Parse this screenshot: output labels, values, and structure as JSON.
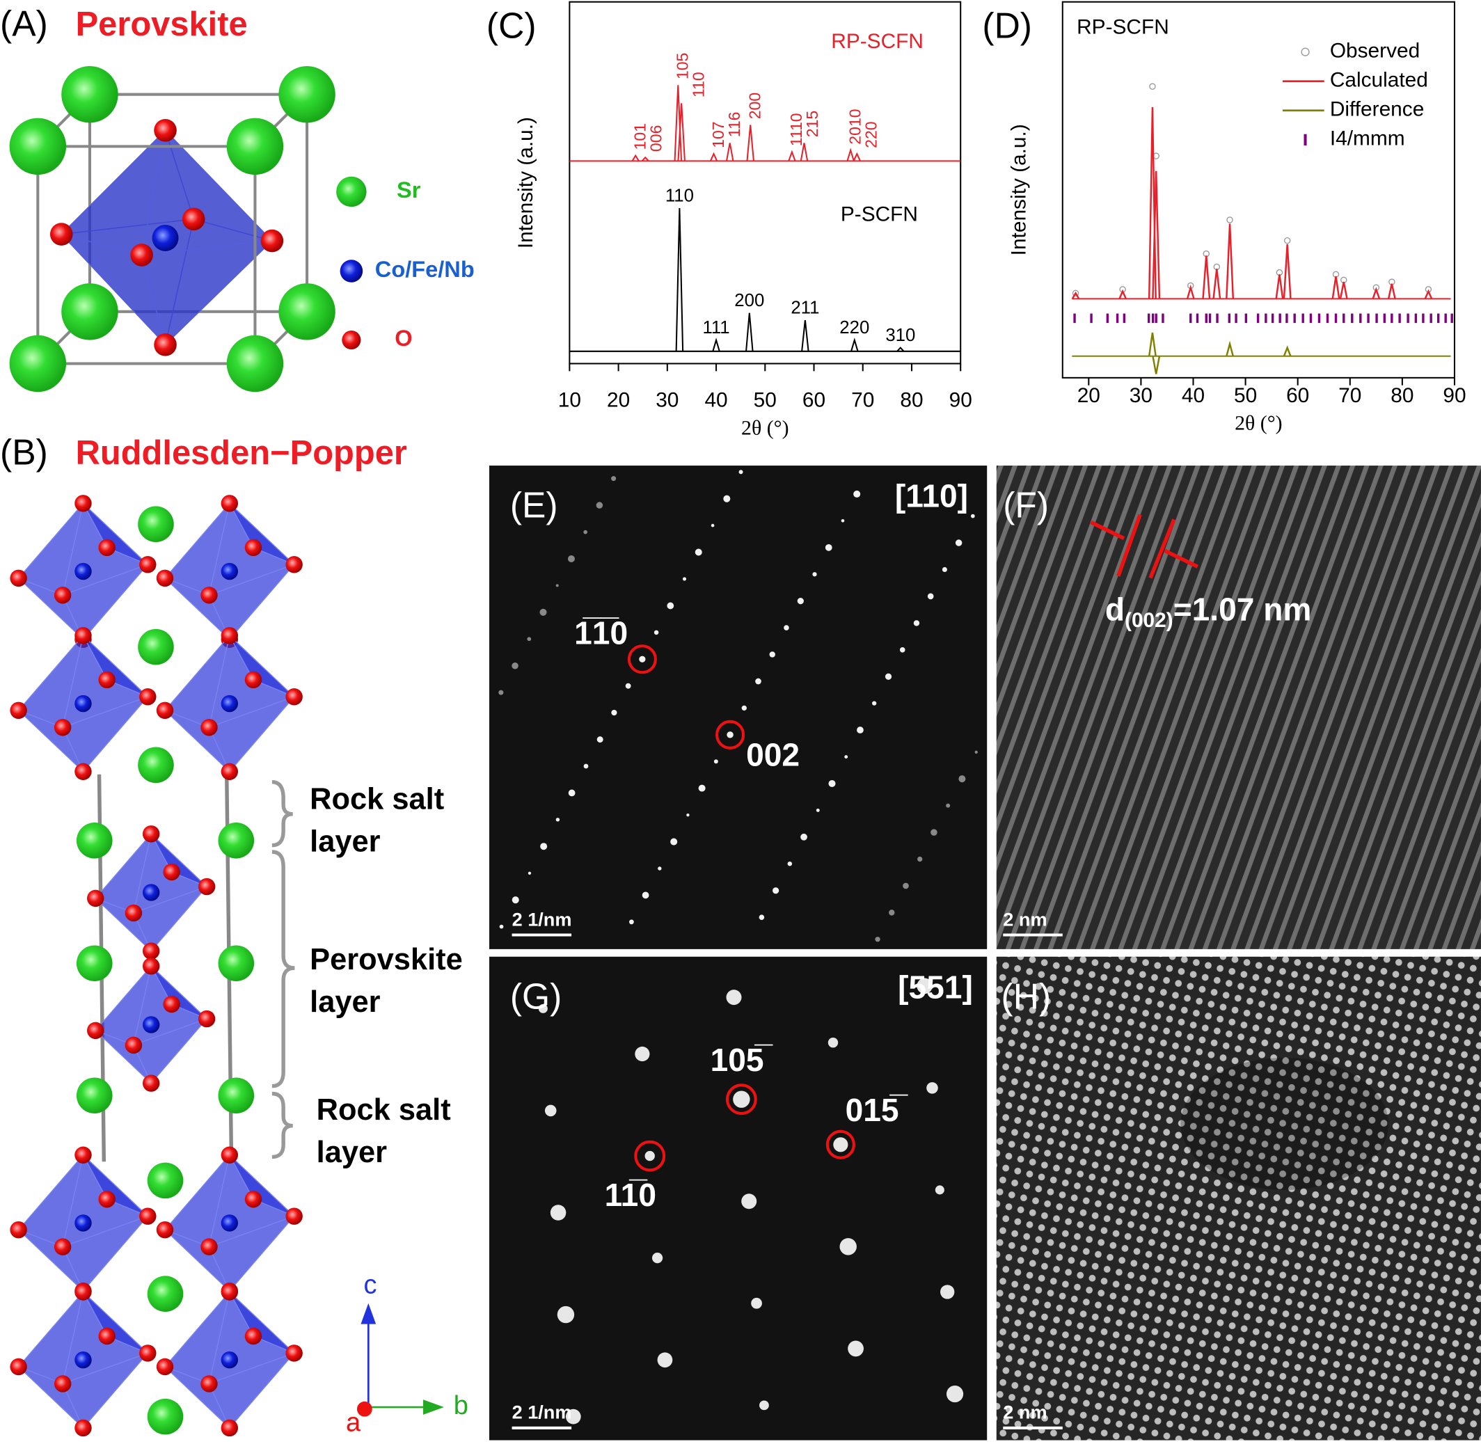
{
  "panels": {
    "A": {
      "label": "(A)",
      "title": "Perovskite",
      "legend": [
        "Sr",
        "Co/Fe/Nb",
        "O"
      ]
    },
    "B": {
      "label": "(B)",
      "title": "Ruddlesden−Popper",
      "layers": [
        [
          "Rock salt",
          "layer"
        ],
        [
          "Perovskite",
          "layer"
        ],
        [
          "Rock salt",
          "layer"
        ]
      ],
      "axes": [
        "c",
        "a",
        "b"
      ]
    },
    "E": {
      "label": "(E)",
      "zone": "[110]",
      "spots": [
        "1̅1̅0",
        "002"
      ],
      "scale_bar": "2 1/nm"
    },
    "F": {
      "label": "(F)",
      "d_symbol": "d",
      "d_index": "(002)",
      "d_value": "=1.07 nm",
      "scale_bar": "2 nm"
    },
    "G": {
      "label": "(G)",
      "zone": "[551]",
      "spots": [
        "105̅",
        "015̅",
        "11̅0"
      ],
      "scale_bar": "2 1/nm"
    },
    "H": {
      "label": "(H)",
      "scale_bar": "2 nm"
    }
  },
  "chart_data": [
    {
      "type": "xrd",
      "label": "(C)",
      "xlabel": "2θ (°)",
      "ylabel": "Intensity (a.u.)",
      "xlim": [
        10,
        90
      ],
      "xticks": [
        10,
        20,
        30,
        40,
        50,
        60,
        70,
        80,
        90
      ],
      "ylim": [
        0,
        100
      ],
      "series": [
        {
          "name": "RP-SCFN",
          "color": "#e8202a",
          "baseline": 56,
          "x": [
            23.5,
            25.5,
            32.2,
            32.9,
            39.5,
            42.8,
            47.0,
            55.5,
            58.0,
            67.5,
            68.8
          ],
          "values": [
            57.5,
            57,
            77,
            72,
            58,
            61,
            66,
            58.5,
            61,
            59,
            58
          ],
          "labels": [
            "101",
            "006",
            "105",
            "110",
            "107",
            "116",
            "200",
            "1110",
            "215",
            "2010",
            "220"
          ]
        },
        {
          "name": "P-SCFN",
          "color": "#000000",
          "baseline": 3.4,
          "x": [
            32.5,
            40.0,
            46.8,
            58.2,
            68.3,
            77.7
          ],
          "values": [
            43,
            6.5,
            14,
            12,
            6.5,
            4.4
          ],
          "labels": [
            "110",
            "111",
            "200",
            "211",
            "220",
            "310"
          ]
        }
      ]
    },
    {
      "type": "rietveld",
      "label": "(D)",
      "title": "RP-SCFN",
      "xlabel": "2θ (°)",
      "ylabel": "Intensity (a.u.)",
      "xlim": [
        15,
        90
      ],
      "xticks": [
        20,
        30,
        40,
        50,
        60,
        70,
        80,
        90
      ],
      "ylim": [
        0,
        100
      ],
      "series": [
        {
          "name": "Observed",
          "color": "#999999",
          "x": [
            17.5,
            26.5,
            32.2,
            32.9,
            39.5,
            42.5,
            44.5,
            47.0,
            56.5,
            58.0,
            67.3,
            68.8,
            75.0,
            78.0,
            85.0
          ],
          "values": [
            22.5,
            23.5,
            77.5,
            59,
            24.5,
            33,
            29.5,
            42,
            28,
            36.5,
            27.5,
            26,
            24,
            25.5,
            23.5
          ]
        },
        {
          "name": "Calculated",
          "color": "#e8202a",
          "baseline": 21,
          "x": [
            17.5,
            26.5,
            32.2,
            32.9,
            39.5,
            42.5,
            44.5,
            47.0,
            56.5,
            58.0,
            67.3,
            68.8,
            75.0,
            78.0,
            85.0
          ],
          "values": [
            22.5,
            23,
            72,
            55,
            24,
            32.5,
            29,
            41,
            27.5,
            35.5,
            27,
            25.5,
            23.5,
            25,
            23
          ]
        },
        {
          "name": "Difference",
          "color": "#808000",
          "baseline": 5.75,
          "x": [
            32.2,
            32.9,
            47.0,
            58.0
          ],
          "values": [
            12,
            1,
            9,
            8
          ]
        },
        {
          "name": "I4/mmm",
          "color": "#800080",
          "x": [
            17.3,
            20.5,
            23.6,
            25.5,
            26.8,
            31.5,
            32.3,
            32.9,
            34.2,
            39.5,
            40.8,
            42.5,
            43.2,
            44.6,
            46.9,
            48.2,
            50.1,
            52.4,
            53.9,
            55.2,
            56.6,
            57.9,
            59.4,
            61.0,
            62.5,
            64.1,
            65.7,
            67.3,
            68.8,
            70.4,
            72.0,
            73.5,
            75.1,
            76.6,
            78.0,
            79.5,
            81.1,
            82.6,
            84.0,
            85.5,
            86.9,
            88.3,
            89.5
          ]
        }
      ]
    }
  ]
}
